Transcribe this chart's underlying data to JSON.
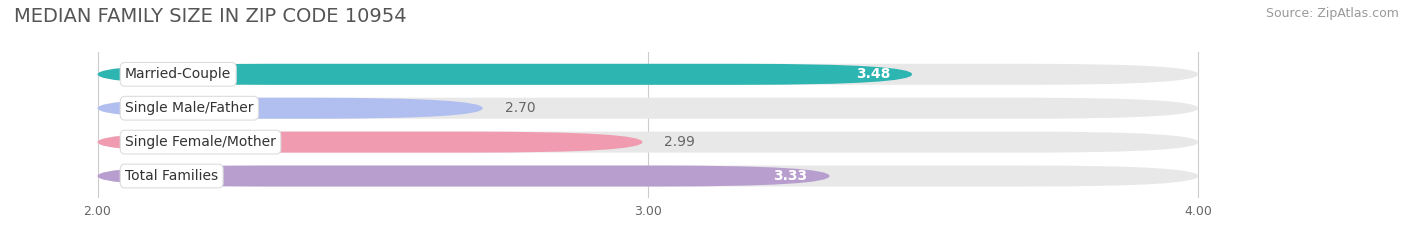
{
  "title": "MEDIAN FAMILY SIZE IN ZIP CODE 10954",
  "source": "Source: ZipAtlas.com",
  "categories": [
    "Married-Couple",
    "Single Male/Father",
    "Single Female/Mother",
    "Total Families"
  ],
  "values": [
    3.48,
    2.7,
    2.99,
    3.33
  ],
  "bar_colors": [
    "#2db5b2",
    "#b0bef0",
    "#f09bb0",
    "#b89ece"
  ],
  "value_label_colors": [
    "#ffffff",
    "#888888",
    "#888888",
    "#ffffff"
  ],
  "value_inside": [
    true,
    false,
    false,
    true
  ],
  "xlim_data": [
    2.0,
    4.0
  ],
  "xlim_plot": [
    1.85,
    4.35
  ],
  "xticks": [
    2.0,
    3.0,
    4.0
  ],
  "xtick_labels": [
    "2.00",
    "3.00",
    "4.00"
  ],
  "bar_height": 0.62,
  "track_color": "#e8e8e8",
  "background_color": "#ffffff",
  "title_fontsize": 14,
  "source_fontsize": 9,
  "label_fontsize": 10,
  "value_fontsize": 10,
  "tick_fontsize": 9
}
